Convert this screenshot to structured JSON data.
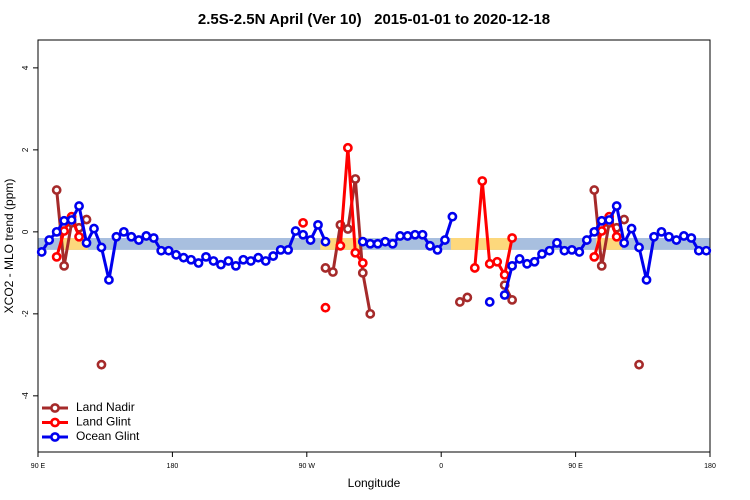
{
  "chart_data": {
    "type": "line",
    "title": "2.5S-2.5N April (Ver 10)   2015-01-01 to 2020-12-18",
    "x_label": "Longitude",
    "y_label": "XCO2 - MLO trend (ppm)",
    "xlim": [
      90,
      540
    ],
    "ylim": [
      -5.37,
      4.68
    ],
    "xticks": [
      {
        "value": 90,
        "label": "90 E"
      },
      {
        "value": 180,
        "label": "180"
      },
      {
        "value": 270,
        "label": "90 W"
      },
      {
        "value": 360,
        "label": "0"
      },
      {
        "value": 450,
        "label": "90 E"
      },
      {
        "value": 540,
        "label": "180"
      }
    ],
    "yticks": [
      -4,
      -2,
      0,
      2,
      4
    ],
    "legend": "bottomleft",
    "band": {
      "ylim": [
        -0.44,
        -0.15
      ],
      "color": "#a8bfdf"
    },
    "highlights": {
      "color": "#fdd87c",
      "xranges": [
        [
          106,
          123.5
        ],
        [
          279,
          305.6
        ],
        [
          366.5,
          406.7
        ],
        [
          463.7,
          481
        ]
      ]
    },
    "x": [
      92.5,
      97.5,
      102.5,
      107.5,
      112.5,
      117.5,
      122.5,
      127.5,
      132.5,
      137.5,
      142.5,
      147.5,
      152.5,
      157.5,
      162.5,
      167.5,
      172.5,
      177.5,
      182.5,
      187.5,
      192.5,
      197.5,
      202.5,
      207.5,
      212.5,
      217.5,
      222.5,
      227.5,
      232.5,
      237.5,
      242.5,
      247.5,
      252.5,
      257.5,
      262.5,
      267.5,
      272.5,
      277.5,
      282.5,
      287.5,
      292.5,
      297.5,
      302.5,
      307.5,
      312.5,
      317.5,
      322.5,
      327.5,
      332.5,
      337.5,
      342.5,
      347.5,
      352.5,
      357.5,
      362.5,
      367.5,
      372.5,
      377.5,
      382.5,
      387.5,
      392.5,
      397.5,
      402.5,
      407.5,
      412.5,
      417.5,
      422.5,
      427.5,
      432.5,
      437.5,
      442.5,
      447.5,
      452.5,
      457.5,
      462.5,
      467.5,
      472.5,
      477.5,
      482.5,
      487.5,
      492.5,
      497.5,
      502.5,
      507.5,
      512.5,
      517.5,
      522.5,
      527.5,
      532.5,
      537.5
    ],
    "series": [
      {
        "name": "Land Nadir",
        "color": "#a52a2a",
        "values": [
          null,
          null,
          1.02,
          -0.83,
          0.22,
          0.1,
          0.3,
          null,
          -3.24,
          null,
          null,
          null,
          null,
          null,
          null,
          null,
          null,
          null,
          null,
          null,
          null,
          null,
          null,
          null,
          null,
          null,
          null,
          null,
          null,
          null,
          null,
          null,
          null,
          null,
          null,
          null,
          null,
          null,
          -0.88,
          -0.98,
          0.17,
          0.07,
          1.29,
          -1.0,
          -2.0,
          null,
          null,
          null,
          null,
          null,
          null,
          null,
          null,
          null,
          null,
          null,
          -1.71,
          -1.6,
          null,
          null,
          null,
          null,
          -1.3,
          -1.66,
          null,
          null,
          null,
          null,
          null,
          null,
          null,
          null,
          null,
          null,
          1.02,
          -0.83,
          0.22,
          0.1,
          0.3,
          null,
          -3.24,
          null,
          null,
          null,
          null,
          null,
          null,
          null,
          null,
          null
        ]
      },
      {
        "name": "Land Glint",
        "color": "#ff0000",
        "values": [
          null,
          null,
          -0.61,
          0.02,
          0.37,
          -0.12,
          null,
          null,
          null,
          null,
          null,
          null,
          null,
          null,
          null,
          null,
          null,
          null,
          null,
          null,
          null,
          null,
          null,
          null,
          null,
          null,
          null,
          null,
          null,
          null,
          null,
          null,
          null,
          null,
          null,
          0.22,
          null,
          null,
          -1.85,
          null,
          -0.34,
          2.05,
          -0.51,
          -0.76,
          null,
          null,
          null,
          null,
          null,
          null,
          null,
          null,
          null,
          null,
          null,
          null,
          null,
          null,
          -0.88,
          1.24,
          -0.78,
          -0.73,
          -1.05,
          -0.15,
          null,
          null,
          null,
          null,
          null,
          null,
          null,
          null,
          null,
          null,
          -0.61,
          0.02,
          0.37,
          -0.12,
          null,
          null,
          null,
          null,
          null,
          null,
          null,
          null,
          null,
          null,
          null,
          null
        ]
      },
      {
        "name": "Ocean Glint",
        "color": "#0000ee",
        "values": [
          -0.49,
          -0.2,
          0,
          0.27,
          0.29,
          0.63,
          -0.27,
          0.08,
          -0.38,
          -1.17,
          -0.12,
          0,
          -0.12,
          -0.2,
          -0.1,
          -0.15,
          -0.46,
          -0.46,
          -0.56,
          -0.63,
          -0.68,
          -0.76,
          -0.61,
          -0.71,
          -0.8,
          -0.71,
          -0.83,
          -0.68,
          -0.71,
          -0.63,
          -0.71,
          -0.59,
          -0.44,
          -0.44,
          0.02,
          -0.07,
          -0.2,
          0.17,
          -0.24,
          null,
          null,
          null,
          null,
          -0.24,
          -0.29,
          -0.29,
          -0.24,
          -0.29,
          -0.1,
          -0.1,
          -0.07,
          -0.07,
          -0.34,
          -0.44,
          -0.2,
          0.37,
          null,
          null,
          null,
          null,
          -1.71,
          null,
          -1.54,
          -0.83,
          -0.66,
          -0.78,
          -0.73,
          -0.54,
          -0.46,
          -0.27,
          -0.46,
          -0.44,
          -0.49,
          -0.2,
          0,
          0.27,
          0.29,
          0.63,
          -0.27,
          0.08,
          -0.38,
          -1.17,
          -0.12,
          0,
          -0.12,
          -0.2,
          -0.1,
          -0.15,
          -0.46,
          -0.46
        ]
      }
    ]
  }
}
